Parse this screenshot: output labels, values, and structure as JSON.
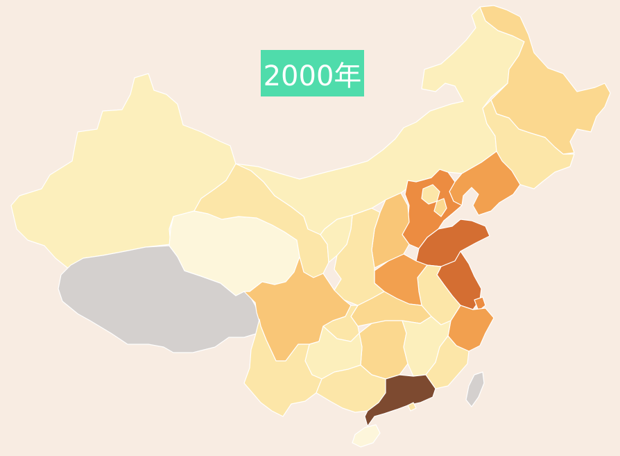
{
  "title_badge": {
    "text": "2000年",
    "background": "#4fdcab"
  },
  "background_color": "#f8ece2",
  "legend_scale": {
    "no_data": "#d4d0ce",
    "levels": [
      "#fdf6db",
      "#fcefbc",
      "#fce6a8",
      "#fbd88f",
      "#f9c677",
      "#f2a04f",
      "#ec8c41",
      "#d46e32",
      "#7d4a30"
    ]
  },
  "regions": [
    {
      "id": "xinjiang",
      "color": "#fcefbc"
    },
    {
      "id": "xizang",
      "color": "#d4d0ce"
    },
    {
      "id": "qinghai",
      "color": "#fdf6db"
    },
    {
      "id": "gansu",
      "color": "#fce6a8"
    },
    {
      "id": "neimenggu",
      "color": "#fcefbc"
    },
    {
      "id": "heilongjiang",
      "color": "#fbd88f"
    },
    {
      "id": "jilin",
      "color": "#fce6a8"
    },
    {
      "id": "liaoning",
      "color": "#f2a04f"
    },
    {
      "id": "hebei",
      "color": "#ec8c41"
    },
    {
      "id": "beijing",
      "color": "#fce6a8"
    },
    {
      "id": "tianjin",
      "color": "#fbd88f"
    },
    {
      "id": "shandong",
      "color": "#d46e32"
    },
    {
      "id": "jiangsu",
      "color": "#d46e32"
    },
    {
      "id": "shanghai",
      "color": "#ec8c41"
    },
    {
      "id": "zhejiang",
      "color": "#f2a04f"
    },
    {
      "id": "anhui",
      "color": "#fce6a8"
    },
    {
      "id": "henan",
      "color": "#f2a04f"
    },
    {
      "id": "shanxi",
      "color": "#f9c677"
    },
    {
      "id": "shaanxi",
      "color": "#fce6a8"
    },
    {
      "id": "ningxia",
      "color": "#fcefbc"
    },
    {
      "id": "hubei",
      "color": "#fbd88f"
    },
    {
      "id": "hunan",
      "color": "#fbd88f"
    },
    {
      "id": "jiangxi",
      "color": "#fcefbc"
    },
    {
      "id": "fujian",
      "color": "#fce6a8"
    },
    {
      "id": "sichuan",
      "color": "#f9c677"
    },
    {
      "id": "chongqing",
      "color": "#fce6a8"
    },
    {
      "id": "guizhou",
      "color": "#fcefbc"
    },
    {
      "id": "yunnan",
      "color": "#fce6a8"
    },
    {
      "id": "guangxi",
      "color": "#fce6a8"
    },
    {
      "id": "guangdong",
      "color": "#7d4a30"
    },
    {
      "id": "hainan",
      "color": "#fdf6db"
    },
    {
      "id": "taiwan",
      "color": "#d4d0ce"
    },
    {
      "id": "hongkong",
      "color": "#fce6a8"
    }
  ]
}
